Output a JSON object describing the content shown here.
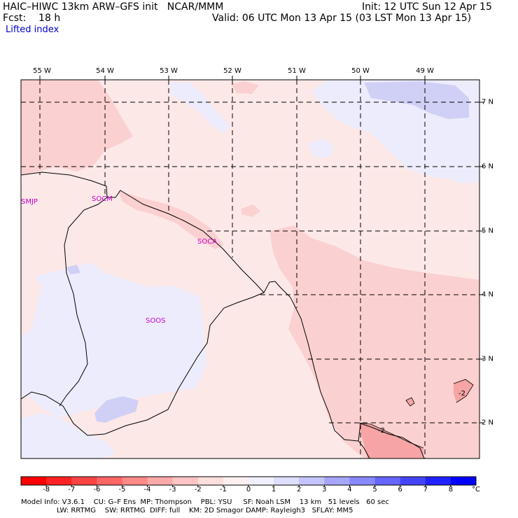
{
  "header": {
    "model_line": "HAIC–HIWC 13km ARW–GFS init   NCAR/MMM",
    "init_line": "Init: 12 UTC Sun 12 Apr 15",
    "fcst_line": "Fcst:    18 h",
    "valid_line": "Valid: 06 UTC Mon 13 Apr 15 (03 LST Mon 13 Apr 15)",
    "field_name": "Lifted index"
  },
  "map": {
    "longitude_labels": [
      "55 W",
      "54 W",
      "53 W",
      "52 W",
      "51 W",
      "50 W",
      "49 W"
    ],
    "latitude_labels": [
      "7 N",
      "6 N",
      "5 N",
      "4 N",
      "3 N",
      "2 N"
    ],
    "places": [
      "SMJP",
      "SOCM",
      "SOCA",
      "SOOS"
    ],
    "contour_labels": [
      "-2",
      "-2"
    ],
    "colors": {
      "negative_light": "#fde8e8",
      "negative_mid": "#fbd0d0",
      "negative_strong": "#f6a4a4",
      "positive_light": "#ececfc",
      "positive_mid": "#d0d0f6",
      "positive_strong": "#b6b6f0",
      "border": "#000000",
      "grid": "#000000",
      "place_label": "#cc00cc"
    }
  },
  "colorbar": {
    "tick_labels": [
      "-8",
      "-7",
      "-6",
      "-5",
      "-4",
      "-3",
      "-2",
      "-1",
      "0",
      "1",
      "2",
      "3",
      "4",
      "5",
      "6",
      "7",
      "8"
    ],
    "unit": "°C",
    "colors": [
      "#ff0000",
      "#ff2222",
      "#ff4444",
      "#ff6666",
      "#ff8888",
      "#ffaaaa",
      "#ffc4c4",
      "#ffdede",
      "#fff0f0",
      "#f0f0ff",
      "#dedeff",
      "#c4c4ff",
      "#a6a6ff",
      "#8888ff",
      "#6666ff",
      "#4444ff",
      "#2222ff",
      "#0000ff"
    ]
  },
  "footer": {
    "line1": "Model Info: V3.6.1    CU: G–F Ens  MP: Thompson    PBL: YSU     SF: Noah LSM    13 km   51 levels   60 sec",
    "line2": "                LW: RRTMG    SW: RRTMG  DIFF: full    KM: 2D Smagor DAMP: Rayleigh3   SFLAY: MM5"
  }
}
